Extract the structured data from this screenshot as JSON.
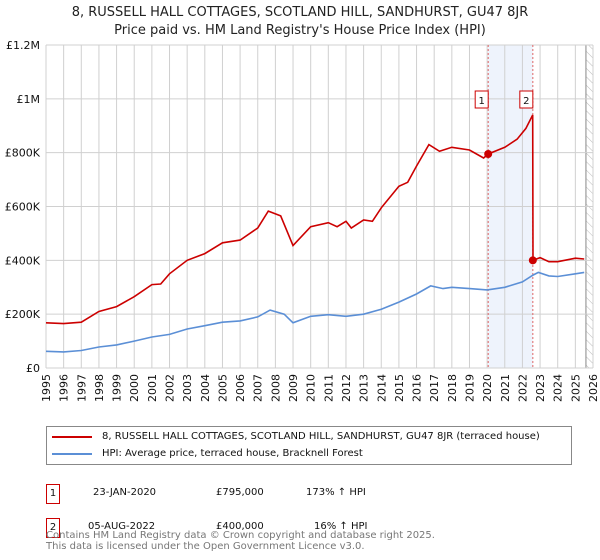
{
  "chart_data": {
    "type": "line",
    "title": "8, RUSSELL HALL COTTAGES, SCOTLAND HILL, SANDHURST, GU47 8JR",
    "subtitle": "Price paid vs. HM Land Registry's House Price Index (HPI)",
    "xlim": [
      1995,
      2026
    ],
    "ylim": [
      0,
      1200000
    ],
    "x_ticks": [
      "1995",
      "1996",
      "1997",
      "1998",
      "1999",
      "2000",
      "2001",
      "2002",
      "2003",
      "2004",
      "2005",
      "2006",
      "2007",
      "2008",
      "2009",
      "2010",
      "2011",
      "2012",
      "2013",
      "2014",
      "2015",
      "2016",
      "2017",
      "2018",
      "2019",
      "2020",
      "2021",
      "2022",
      "2023",
      "2024",
      "2025",
      "2026"
    ],
    "y_ticks": [
      {
        "v": 0,
        "label": "£0"
      },
      {
        "v": 200000,
        "label": "£200K"
      },
      {
        "v": 400000,
        "label": "£400K"
      },
      {
        "v": 600000,
        "label": "£600K"
      },
      {
        "v": 800000,
        "label": "£800K"
      },
      {
        "v": 1000000,
        "label": "£1M"
      },
      {
        "v": 1200000,
        "label": "£1.2M"
      }
    ],
    "grid": true,
    "shaded_range": [
      2020.06,
      2022.59
    ],
    "forecast_hatch_from": 2025.6,
    "series": [
      {
        "name": "8, RUSSELL HALL COTTAGES, SCOTLAND HILL, SANDHURST, GU47 8JR (terraced house)",
        "color": "#cc0000",
        "x": [
          1995,
          1996,
          1997,
          1998,
          1999,
          2000,
          2001,
          2001.5,
          2002,
          2003,
          2004,
          2005,
          2006,
          2007,
          2007.6,
          2008.3,
          2009,
          2010,
          2011,
          2011.5,
          2012,
          2012.3,
          2013,
          2013.5,
          2014,
          2015,
          2015.5,
          2016,
          2016.7,
          2017.3,
          2018,
          2019,
          2019.8,
          2020.06,
          2021,
          2021.7,
          2022.2,
          2022.58,
          2022.6,
          2023,
          2023.5,
          2024,
          2025,
          2025.5
        ],
        "y": [
          168000,
          165000,
          170000,
          210000,
          228000,
          265000,
          310000,
          312000,
          350000,
          400000,
          425000,
          465000,
          475000,
          520000,
          583000,
          565000,
          455000,
          525000,
          540000,
          525000,
          545000,
          520000,
          550000,
          545000,
          595000,
          675000,
          690000,
          750000,
          830000,
          805000,
          820000,
          810000,
          780000,
          795000,
          820000,
          850000,
          890000,
          940000,
          400000,
          410000,
          395000,
          395000,
          408000,
          405000
        ]
      },
      {
        "name": "HPI: Average price, terraced house, Bracknell Forest",
        "color": "#5b8fd6",
        "x": [
          1995,
          1996,
          1997,
          1998,
          1999,
          2000,
          2001,
          2002,
          2003,
          2004,
          2005,
          2006,
          2007,
          2007.7,
          2008.5,
          2009,
          2010,
          2011,
          2012,
          2013,
          2014,
          2015,
          2016,
          2016.8,
          2017.5,
          2018,
          2019,
          2020,
          2021,
          2022,
          2022.6,
          2022.9,
          2023.5,
          2024,
          2025,
          2025.5
        ],
        "y": [
          62000,
          60000,
          65000,
          78000,
          86000,
          100000,
          115000,
          125000,
          145000,
          157000,
          170000,
          175000,
          190000,
          215000,
          200000,
          168000,
          192000,
          198000,
          192000,
          200000,
          218000,
          245000,
          275000,
          305000,
          295000,
          300000,
          295000,
          290000,
          300000,
          320000,
          345000,
          355000,
          342000,
          340000,
          350000,
          355000
        ]
      }
    ],
    "sales": [
      {
        "id": "1",
        "x": 2020.06,
        "price": 795000,
        "date": "23-JAN-2020",
        "price_label": "£795,000",
        "hpi": "173% ↑ HPI"
      },
      {
        "id": "2",
        "x": 2022.59,
        "price": 400000,
        "date": "05-AUG-2022",
        "price_label": "£400,000",
        "hpi": "16% ↑ HPI"
      }
    ]
  },
  "legend": {
    "series0": "8, RUSSELL HALL COTTAGES, SCOTLAND HILL, SANDHURST, GU47 8JR (terraced house)",
    "series1": "HPI: Average price, terraced house, Bracknell Forest"
  },
  "footer": {
    "line1": "Contains HM Land Registry data © Crown copyright and database right 2025.",
    "line2": "This data is licensed under the Open Government Licence v3.0."
  }
}
